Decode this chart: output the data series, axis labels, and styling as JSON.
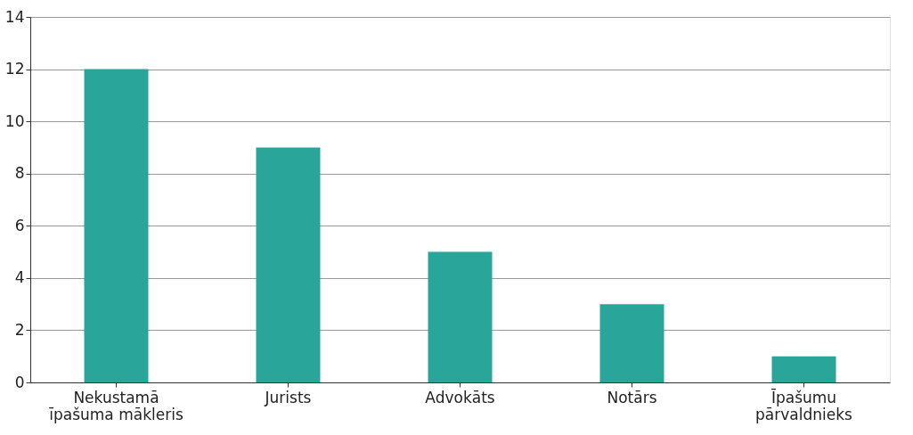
{
  "chart_data": {
    "type": "bar",
    "categories": [
      "Nekustamā īpašuma mākleris",
      "Jurists",
      "Advokāts",
      "Notārs",
      "Īpašumu pārvaldnieks"
    ],
    "values": [
      12,
      9,
      5,
      3,
      1
    ],
    "color": "#2aa59a",
    "ylim": [
      0,
      14
    ],
    "yticks": [
      0,
      2,
      4,
      6,
      8,
      10,
      12,
      14
    ],
    "grid": "y"
  }
}
